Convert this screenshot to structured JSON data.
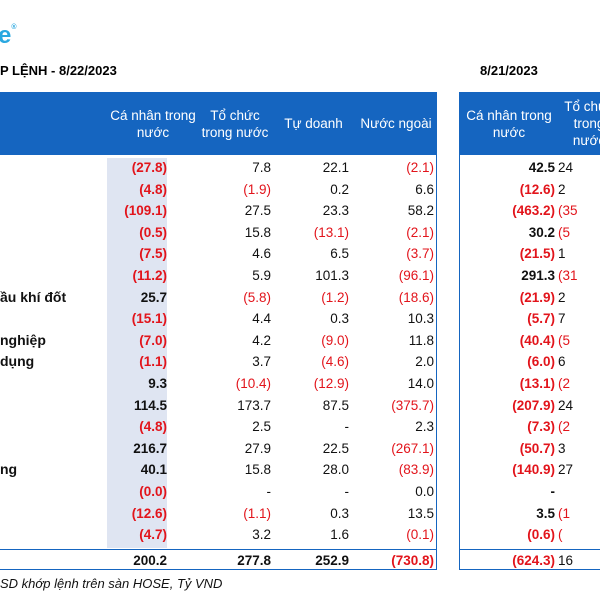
{
  "brand": {
    "logo_text": "e",
    "logo_mark": "®",
    "accent": "#1565c0"
  },
  "titles": {
    "left": "P LỆNH - 8/22/2023",
    "right": "8/21/2023"
  },
  "headers_left": [
    "Cá nhân trong nước",
    "Tổ chức trong nước",
    "Tự doanh",
    "Nước ngoài"
  ],
  "headers_right": [
    "Cá nhân trong nước",
    "Tổ chức trong nước"
  ],
  "headers_right_visible": [
    "Cá nhân\ntrong nước",
    "Tổ c\nn"
  ],
  "rows": [
    {
      "label": "",
      "v": [
        "(27.8)",
        "7.8",
        "22.1",
        "(2.1)"
      ],
      "r": [
        "42.5",
        "24"
      ]
    },
    {
      "label": "",
      "v": [
        "(4.8)",
        "(1.9)",
        "0.2",
        "6.6"
      ],
      "r": [
        "(12.6)",
        "2"
      ]
    },
    {
      "label": "",
      "v": [
        "(109.1)",
        "27.5",
        "23.3",
        "58.2"
      ],
      "r": [
        "(463.2)",
        "(35"
      ]
    },
    {
      "label": "",
      "v": [
        "(0.5)",
        "15.8",
        "(13.1)",
        "(2.1)"
      ],
      "r": [
        "30.2",
        "(5"
      ]
    },
    {
      "label": "",
      "v": [
        "(7.5)",
        "4.6",
        "6.5",
        "(3.7)"
      ],
      "r": [
        "(21.5)",
        "1"
      ]
    },
    {
      "label": "",
      "v": [
        "(11.2)",
        "5.9",
        "101.3",
        "(96.1)"
      ],
      "r": [
        "291.3",
        "(31"
      ]
    },
    {
      "label": "ầu khí đốt",
      "v": [
        "25.7",
        "(5.8)",
        "(1.2)",
        "(18.6)"
      ],
      "r": [
        "(21.9)",
        "2"
      ]
    },
    {
      "label": "",
      "v": [
        "(15.1)",
        "4.4",
        "0.3",
        "10.3"
      ],
      "r": [
        "(5.7)",
        "7"
      ]
    },
    {
      "label": "nghiệp",
      "v": [
        "(7.0)",
        "4.2",
        "(9.0)",
        "11.8"
      ],
      "r": [
        "(40.4)",
        "(5"
      ]
    },
    {
      "label": "dụng",
      "v": [
        "(1.1)",
        "3.7",
        "(4.6)",
        "2.0"
      ],
      "r": [
        "(6.0)",
        "6"
      ]
    },
    {
      "label": "",
      "v": [
        "9.3",
        "(10.4)",
        "(12.9)",
        "14.0"
      ],
      "r": [
        "(13.1)",
        "(2"
      ]
    },
    {
      "label": "",
      "v": [
        "114.5",
        "173.7",
        "87.5",
        "(375.7)"
      ],
      "r": [
        "(207.9)",
        "24"
      ]
    },
    {
      "label": "",
      "v": [
        "(4.8)",
        "2.5",
        "-",
        "2.3"
      ],
      "r": [
        "(7.3)",
        "(2"
      ]
    },
    {
      "label": "",
      "v": [
        "216.7",
        "27.9",
        "22.5",
        "(267.1)"
      ],
      "r": [
        "(50.7)",
        "3"
      ]
    },
    {
      "label": "ng",
      "v": [
        "40.1",
        "15.8",
        "28.0",
        "(83.9)"
      ],
      "r": [
        "(140.9)",
        "27"
      ]
    },
    {
      "label": "",
      "v": [
        "(0.0)",
        "-",
        "-",
        "0.0"
      ],
      "r": [
        "-",
        ""
      ]
    },
    {
      "label": "",
      "v": [
        "(12.6)",
        "(1.1)",
        "0.3",
        "13.5"
      ],
      "r": [
        "3.5",
        "(1"
      ]
    },
    {
      "label": "",
      "v": [
        "(4.7)",
        "3.2",
        "1.6",
        "(0.1)"
      ],
      "r": [
        "(0.6)",
        "("
      ]
    }
  ],
  "total": {
    "v": [
      "200.2",
      "277.8",
      "252.9",
      "(730.8)"
    ],
    "r": [
      "(624.3)",
      "16"
    ]
  },
  "footer": "SD khớp lệnh trên sàn HOSE, Tỷ VND"
}
